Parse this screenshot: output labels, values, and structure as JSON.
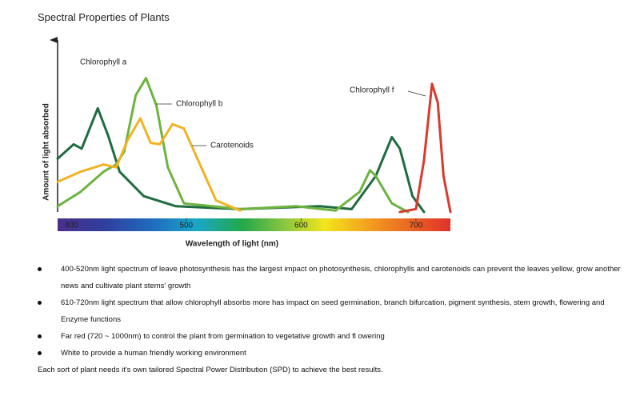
{
  "chart_data": {
    "type": "line",
    "title": "Spectral Properties of Plants",
    "x_label": "Wavelength of light (nm)",
    "y_label": "Amount of light absorbed",
    "xlim": [
      388,
      730
    ],
    "xticks": [
      400,
      500,
      600,
      700
    ],
    "ylim": [
      0,
      100
    ],
    "series": [
      {
        "name": "Chlorophyll a",
        "color": "#1f6b3f",
        "x": [
          388,
          402,
          409,
          423,
          432,
          442,
          463,
          491,
          547,
          616,
          644,
          665,
          679,
          686,
          697,
          707
        ],
        "values": [
          37,
          47,
          44,
          72,
          53,
          28,
          11,
          4,
          2,
          4,
          2,
          25,
          52,
          44,
          11,
          0
        ]
      },
      {
        "name": "Chlorophyll b",
        "color": "#6db33f",
        "x": [
          388,
          408,
          428,
          439,
          446,
          456,
          465,
          474,
          484,
          498,
          547,
          596,
          630,
          651,
          660,
          665,
          679,
          693
        ],
        "values": [
          4,
          14,
          28,
          33,
          42,
          81,
          93,
          74,
          31,
          6,
          2,
          4,
          1,
          14,
          29,
          25,
          6,
          0
        ]
      },
      {
        "name": "Carotenoids",
        "color": "#f0b323",
        "x": [
          388,
          408,
          428,
          439,
          449,
          460,
          469,
          477,
          488,
          498,
          512,
          526,
          547
        ],
        "values": [
          21,
          28,
          33,
          31,
          50,
          65,
          48,
          47,
          61,
          58,
          33,
          8,
          1
        ]
      },
      {
        "name": "Chlorophyll f",
        "color": "#d83a2e",
        "x": [
          686,
          700,
          707,
          714,
          719,
          724,
          730
        ],
        "values": [
          0,
          2,
          36,
          89,
          76,
          25,
          0
        ]
      }
    ]
  },
  "notes": {
    "bullets": [
      "400-520nm light spectrum of leave photosynthesis has the largest impact on photosynthesis, chlorophylls and carotenoids can prevent the leaves yellow, grow another news and cultivate plant stems' growth",
      "610-720nm light spectrum that allow chlorophyll absorbs more has impact on seed germination, branch bifurcation, pigment synthesis, stem growth, flowering and Enzyme functions",
      "Far red (720 ~ 1000nm) to control the plant from germination to vegetative growth and fl owering",
      "White to provide a human friendly working environment"
    ],
    "footer": "Each sort    of plant    needs it's own    tailored    Spectral Power    Distribution    (SPD) to achieve the best results."
  }
}
